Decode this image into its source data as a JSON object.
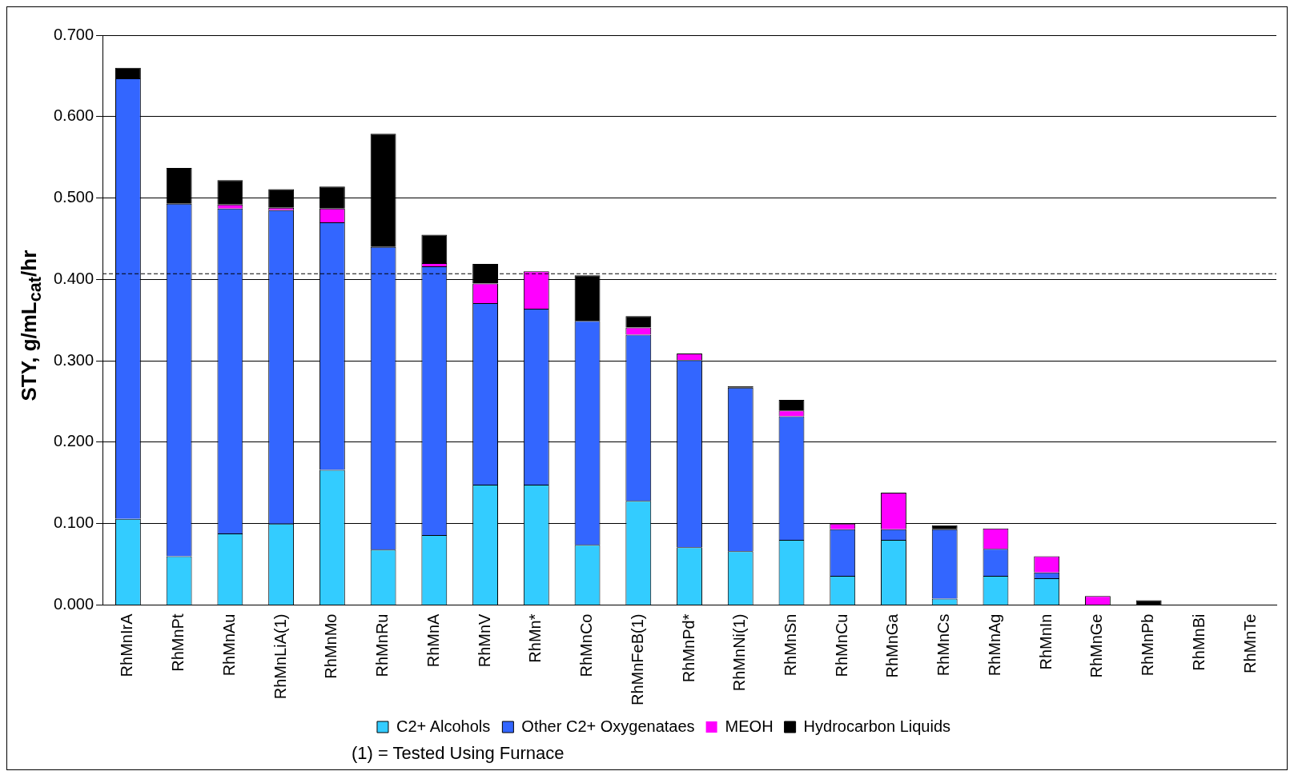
{
  "chart_data": {
    "type": "bar",
    "stacked": true,
    "ylabel": "STY, g/mL$_{cat}$/hr",
    "categories": [
      "RhMnIrA",
      "RhMnPt",
      "RhMnAu",
      "RhMnLiA(1)",
      "RhMnMo",
      "RhMnRu",
      "RhMnA",
      "RhMnV",
      "RhMn*",
      "RhMnCo",
      "RhMnFeB(1)",
      "RhMnPd*",
      "RhMnNi(1)",
      "RhMnSn",
      "RhMnCu",
      "RhMnGa",
      "RhMnCs",
      "RhMnAg",
      "RhMnIn",
      "RhMnGe",
      "RhMnPb",
      "RhMnBi",
      "RhMnTe"
    ],
    "series": [
      {
        "name": "C2+ Alcohols",
        "color": "#33ccff",
        "values": [
          0.106,
          0.06,
          0.088,
          0.1,
          0.166,
          0.068,
          0.086,
          0.148,
          0.148,
          0.074,
          0.128,
          0.071,
          0.066,
          0.08,
          0.036,
          0.08,
          0.008,
          0.036,
          0.033,
          0,
          0,
          0,
          0
        ]
      },
      {
        "name": "Other C2+ Oxygenataes",
        "color": "#3366ff",
        "values": [
          0.541,
          0.433,
          0.399,
          0.385,
          0.304,
          0.372,
          0.33,
          0.223,
          0.216,
          0.275,
          0.204,
          0.23,
          0.201,
          0.152,
          0.057,
          0.013,
          0.085,
          0.033,
          0.007,
          0,
          0,
          0,
          0
        ]
      },
      {
        "name": "MEOH",
        "color": "#ff00ff",
        "values": [
          0,
          0,
          0.005,
          0.003,
          0.017,
          0,
          0.004,
          0.024,
          0.046,
          0,
          0.009,
          0.008,
          0,
          0.007,
          0.007,
          0.045,
          0,
          0.025,
          0.02,
          0.011,
          0,
          0,
          0
        ]
      },
      {
        "name": "Hydrocarbon Liquids",
        "color": "#000000",
        "values": [
          0.013,
          0.044,
          0.03,
          0.023,
          0.027,
          0.139,
          0.035,
          0.024,
          0,
          0.056,
          0.014,
          0,
          0.002,
          0.013,
          0,
          0,
          0.005,
          0,
          0,
          0,
          0.006,
          0,
          0
        ]
      }
    ],
    "ylim": [
      0,
      0.7
    ],
    "yticks": [
      {
        "value": 0,
        "label": "0.000"
      },
      {
        "value": 0.1,
        "label": "0.100"
      },
      {
        "value": 0.2,
        "label": "0.200"
      },
      {
        "value": 0.3,
        "label": "0.300"
      },
      {
        "value": 0.4,
        "label": "0.400"
      },
      {
        "value": 0.5,
        "label": "0.500"
      },
      {
        "value": 0.6,
        "label": "0.600"
      },
      {
        "value": 0.7,
        "label": "0.700"
      }
    ],
    "ref_lines": [
      {
        "axis": "y",
        "value": 0.407,
        "line_style": "dashed",
        "color": "#000000"
      }
    ],
    "grid": "y",
    "legend": "bottom",
    "annotations": [
      "(1) = Tested Using Furnace"
    ]
  }
}
